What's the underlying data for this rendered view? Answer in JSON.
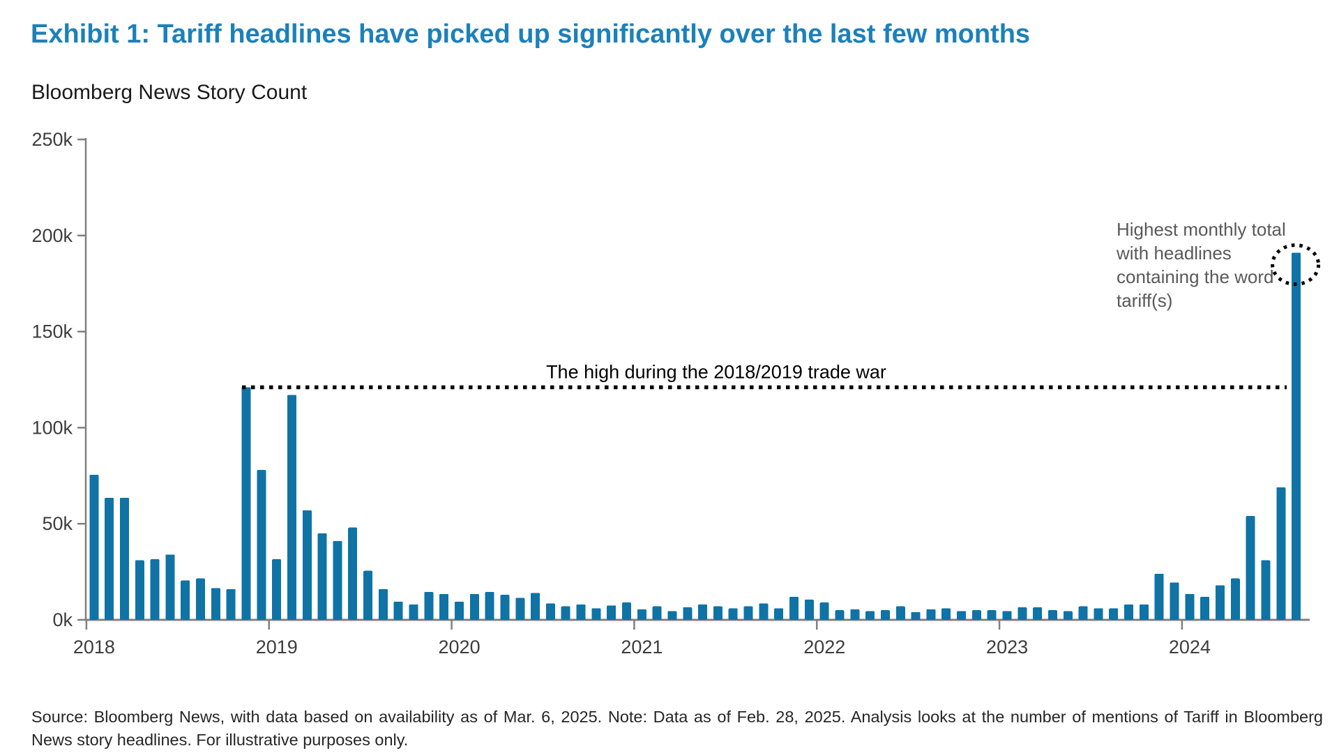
{
  "header": {
    "title": "Exhibit 1: Tariff headlines have picked up significantly over the last few months",
    "subtitle": "Bloomberg News Story Count"
  },
  "footer": {
    "source": "Source: Bloomberg News, with data based on availability as of Mar. 6, 2025. Note: Data as of Feb. 28, 2025. Analysis looks at the number of mentions of Tariff in Bloomberg News story headlines. For illustrative purposes only."
  },
  "colors": {
    "title_blue": "#1c80ba",
    "bar_blue": "#0f73a5",
    "axis_gray": "#808080",
    "tick_label_gray": "#3d3d3d",
    "annotation_gray": "#595959",
    "annotation_black": "#000000"
  },
  "chart_data": {
    "type": "bar",
    "title": "Bloomberg News Story Count",
    "xlabel": "",
    "ylabel": "",
    "unit": "thousands of Bloomberg News stories per month (k)",
    "ylim": [
      0,
      250
    ],
    "grid": false,
    "legend": "none",
    "y_tick_labels": [
      "0k",
      "50k",
      "100k",
      "150k",
      "200k",
      "250k"
    ],
    "x_tick_labels": [
      "2018",
      "2019",
      "2020",
      "2021",
      "2022",
      "2023",
      "2024"
    ],
    "x": [
      "Jan 2018",
      "Feb 2018",
      "Mar 2018",
      "Apr 2018",
      "May 2018",
      "Jun 2018",
      "Jul 2018",
      "Aug 2018",
      "Sep 2018",
      "Oct 2018",
      "Nov 2018",
      "Dec 2018",
      "Jan 2019",
      "Feb 2019",
      "Mar 2019",
      "Apr 2019",
      "May 2019",
      "Jun 2019",
      "Jul 2019",
      "Aug 2019",
      "Sep 2019",
      "Oct 2019",
      "Nov 2019",
      "Dec 2019",
      "Jan 2020",
      "Feb 2020",
      "Mar 2020",
      "Apr 2020",
      "May 2020",
      "Jun 2020",
      "Jul 2020",
      "Aug 2020",
      "Sep 2020",
      "Oct 2020",
      "Nov 2020",
      "Dec 2020",
      "Jan 2021",
      "Feb 2021",
      "Mar 2021",
      "Apr 2021",
      "May 2021",
      "Jun 2021",
      "Jul 2021",
      "Aug 2021",
      "Sep 2021",
      "Oct 2021",
      "Nov 2021",
      "Dec 2021",
      "Jan 2022",
      "Feb 2022",
      "Mar 2022",
      "Apr 2022",
      "May 2022",
      "Jun 2022",
      "Jul 2022",
      "Aug 2022",
      "Sep 2022",
      "Oct 2022",
      "Nov 2022",
      "Dec 2022",
      "Jan 2023",
      "Feb 2023",
      "Mar 2023",
      "Apr 2023",
      "May 2023",
      "Jun 2023",
      "Jul 2023",
      "Aug 2023",
      "Sep 2023",
      "Oct 2023",
      "Nov 2023",
      "Dec 2023",
      "Jan 2024",
      "Feb 2024",
      "Mar 2024",
      "Apr 2024",
      "May 2024",
      "Jun 2024",
      "Jul 2024",
      "Aug 2024"
    ],
    "values": [
      75.5,
      63.5,
      63.5,
      31,
      31.5,
      34,
      20.5,
      21.5,
      16.5,
      16,
      121,
      78,
      31.5,
      117,
      57,
      45,
      41,
      48,
      25.5,
      16,
      9.5,
      8,
      14.5,
      13.5,
      9.5,
      13.5,
      14.5,
      13,
      11.5,
      14,
      8.5,
      7,
      8,
      6,
      7.5,
      9,
      5.5,
      7,
      4.5,
      6.5,
      8,
      7,
      6,
      7,
      8.5,
      6,
      12,
      10.5,
      9,
      5,
      5.5,
      4.5,
      5,
      7,
      4,
      5.5,
      6,
      4.5,
      5,
      5,
      4.5,
      6.5,
      6.5,
      5,
      4.5,
      7,
      6,
      6,
      8,
      8,
      24,
      19.5,
      13.5,
      12,
      18,
      21.5,
      54,
      31,
      69,
      191
    ],
    "annotations": {
      "trade_war_line": {
        "label": "The high during the 2018/2019 trade war",
        "value_k": 121
      },
      "highest_month": {
        "text": "Highest monthly total with headlines containing the word tariff(s)",
        "value_k": 191,
        "month": "Aug 2024"
      }
    }
  }
}
